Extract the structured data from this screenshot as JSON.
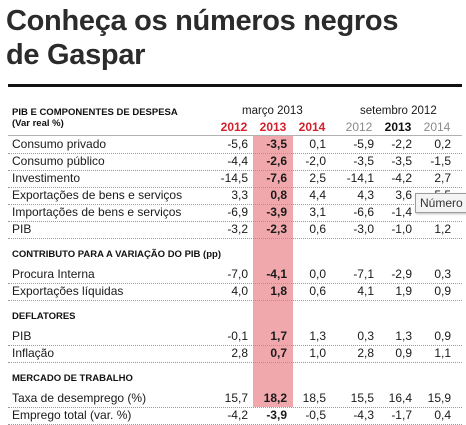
{
  "title": {
    "line1": "Conheça os números negros",
    "line2": "de Gaspar"
  },
  "table": {
    "header_left": {
      "line1": "PIB E COMPONENTES DE DESPESA",
      "line2": "(Var real %)"
    },
    "period_1": "março 2013",
    "period_2": "setembro 2012",
    "years": [
      "2012",
      "2013",
      "2014",
      "2012",
      "2013",
      "2014"
    ],
    "sections": [
      {
        "title": "",
        "rows": [
          {
            "label": "Consumo privado",
            "values": [
              "-5,6",
              "-3,5",
              "0,1",
              "-5,9",
              "-2,2",
              "0,2"
            ]
          },
          {
            "label": "Consumo público",
            "values": [
              "-4,4",
              "-2,6",
              "-2,0",
              "-3,5",
              "-3,5",
              "-1,5"
            ]
          },
          {
            "label": "Investimento",
            "values": [
              "-14,5",
              "-7,6",
              "2,5",
              "-14,1",
              "-4,2",
              "2,7"
            ]
          },
          {
            "label": "Exportações de bens e serviços",
            "values": [
              "3,3",
              "0,8",
              "4,4",
              "4,3",
              "3,6",
              "5,5"
            ]
          },
          {
            "label": "Importações de bens e serviços",
            "values": [
              "-6,9",
              "-3,9",
              "3,1",
              "-6,6",
              "-1,4",
              ""
            ]
          },
          {
            "label": "PIB",
            "values": [
              "-3,2",
              "-2,3",
              "0,6",
              "-3,0",
              "-1,0",
              "1,2"
            ]
          }
        ]
      },
      {
        "title": "CONTRIBUTO PARA A VARIAÇÃO DO PIB (pp)",
        "rows": [
          {
            "label": "Procura Interna",
            "values": [
              "-7,0",
              "-4,1",
              "0,0",
              "-7,1",
              "-2,9",
              "0,3"
            ]
          },
          {
            "label": "Exportações líquidas",
            "values": [
              "4,0",
              "1,8",
              "0,6",
              "4,1",
              "1,9",
              "0,9"
            ]
          }
        ]
      },
      {
        "title": "DEFLATORES",
        "rows": [
          {
            "label": "PIB",
            "values": [
              "-0,1",
              "1,7",
              "1,3",
              "0,3",
              "1,3",
              "0,9"
            ]
          },
          {
            "label": "Inflação",
            "values": [
              "2,8",
              "0,7",
              "1,0",
              "2,8",
              "0,9",
              "1,1"
            ]
          }
        ]
      },
      {
        "title": "MERCADO DE TRABALHO",
        "rows": [
          {
            "label": "Taxa de desemprego (%)",
            "values": [
              "15,7",
              "18,2",
              "18,5",
              "15,5",
              "16,4",
              "15,9"
            ]
          },
          {
            "label": "Emprego total (var. %)",
            "values": [
              "-4,2",
              "-3,9",
              "-0,5",
              "-4,3",
              "-1,7",
              "0,4"
            ]
          }
        ]
      }
    ]
  },
  "tooltip": {
    "text": "Número"
  },
  "colors": {
    "highlight_column": "#f0a8ad",
    "red_year": "#d4202c",
    "grey_year": "#8a8a8a"
  }
}
